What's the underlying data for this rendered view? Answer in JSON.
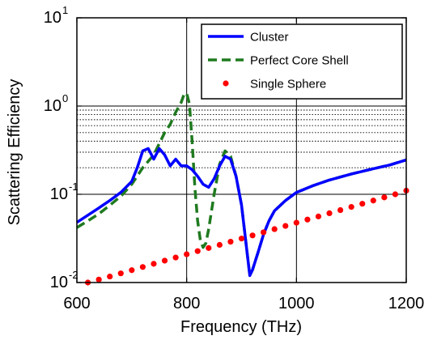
{
  "chart_data": {
    "type": "line",
    "title": "",
    "xlabel": "Frequency (THz)",
    "ylabel": "Scattering Efficiency",
    "xlim": [
      600,
      1200
    ],
    "ylim": [
      0.01,
      10
    ],
    "yscale": "log",
    "x_ticks": [
      "600",
      "800",
      "1000",
      "1200"
    ],
    "y_ticks": [
      {
        "base": "10",
        "exp": "-2"
      },
      {
        "base": "10",
        "exp": "-1"
      },
      {
        "base": "10",
        "exp": "0"
      },
      {
        "base": "10",
        "exp": "1"
      }
    ],
    "grid": "major lines at x-ticks and decades, dotted minor lines on log y",
    "legend_position": "top-right",
    "series": [
      {
        "name": "Cluster",
        "style": "solid",
        "color": "#0000ff",
        "x": [
          600,
          620,
          640,
          660,
          680,
          700,
          710,
          720,
          730,
          740,
          750,
          760,
          770,
          780,
          790,
          800,
          810,
          820,
          830,
          840,
          850,
          860,
          870,
          880,
          890,
          900,
          910,
          915,
          920,
          930,
          940,
          950,
          960,
          980,
          1000,
          1030,
          1060,
          1100,
          1140,
          1170,
          1200
        ],
        "y": [
          0.048,
          0.058,
          0.07,
          0.085,
          0.105,
          0.14,
          0.2,
          0.31,
          0.33,
          0.25,
          0.33,
          0.28,
          0.21,
          0.25,
          0.21,
          0.21,
          0.19,
          0.16,
          0.13,
          0.12,
          0.15,
          0.21,
          0.27,
          0.25,
          0.16,
          0.075,
          0.022,
          0.012,
          0.014,
          0.022,
          0.035,
          0.05,
          0.065,
          0.085,
          0.105,
          0.125,
          0.145,
          0.17,
          0.195,
          0.215,
          0.245
        ]
      },
      {
        "name": "Perfect Core Shell",
        "style": "dashed",
        "color": "#1f7a1f",
        "x": [
          600,
          620,
          640,
          660,
          680,
          700,
          720,
          740,
          760,
          770,
          780,
          790,
          795,
          800,
          805,
          810,
          815,
          820,
          825,
          830,
          835,
          840,
          850,
          860,
          870,
          880,
          890,
          900,
          910,
          915,
          920,
          930,
          940,
          950,
          960,
          980,
          1000,
          1030,
          1060,
          1100,
          1140,
          1170,
          1200
        ],
        "y": [
          0.042,
          0.05,
          0.06,
          0.075,
          0.095,
          0.13,
          0.2,
          0.28,
          0.5,
          0.62,
          0.85,
          1.1,
          1.35,
          1.4,
          1.05,
          0.4,
          0.12,
          0.05,
          0.03,
          0.025,
          0.028,
          0.04,
          0.1,
          0.22,
          0.31,
          0.27,
          0.16,
          0.075,
          0.022,
          0.012,
          0.014,
          0.022,
          0.035,
          0.05,
          0.065,
          0.085,
          0.105,
          0.125,
          0.145,
          0.17,
          0.195,
          0.215,
          0.245
        ]
      },
      {
        "name": "Single Sphere",
        "style": "markers",
        "color": "#ff0000",
        "x": [
          620,
          640,
          660,
          680,
          700,
          720,
          740,
          760,
          780,
          800,
          820,
          840,
          860,
          880,
          900,
          920,
          940,
          960,
          980,
          1000,
          1020,
          1040,
          1060,
          1080,
          1100,
          1120,
          1140,
          1160,
          1180,
          1200
        ],
        "y": [
          0.01,
          0.0108,
          0.0117,
          0.0127,
          0.0138,
          0.015,
          0.0163,
          0.0177,
          0.0192,
          0.0209,
          0.0227,
          0.0246,
          0.0267,
          0.029,
          0.0315,
          0.0342,
          0.0371,
          0.0403,
          0.0438,
          0.0476,
          0.0517,
          0.0561,
          0.061,
          0.0662,
          0.0719,
          0.0781,
          0.0849,
          0.0922,
          0.1,
          0.11
        ]
      }
    ]
  }
}
